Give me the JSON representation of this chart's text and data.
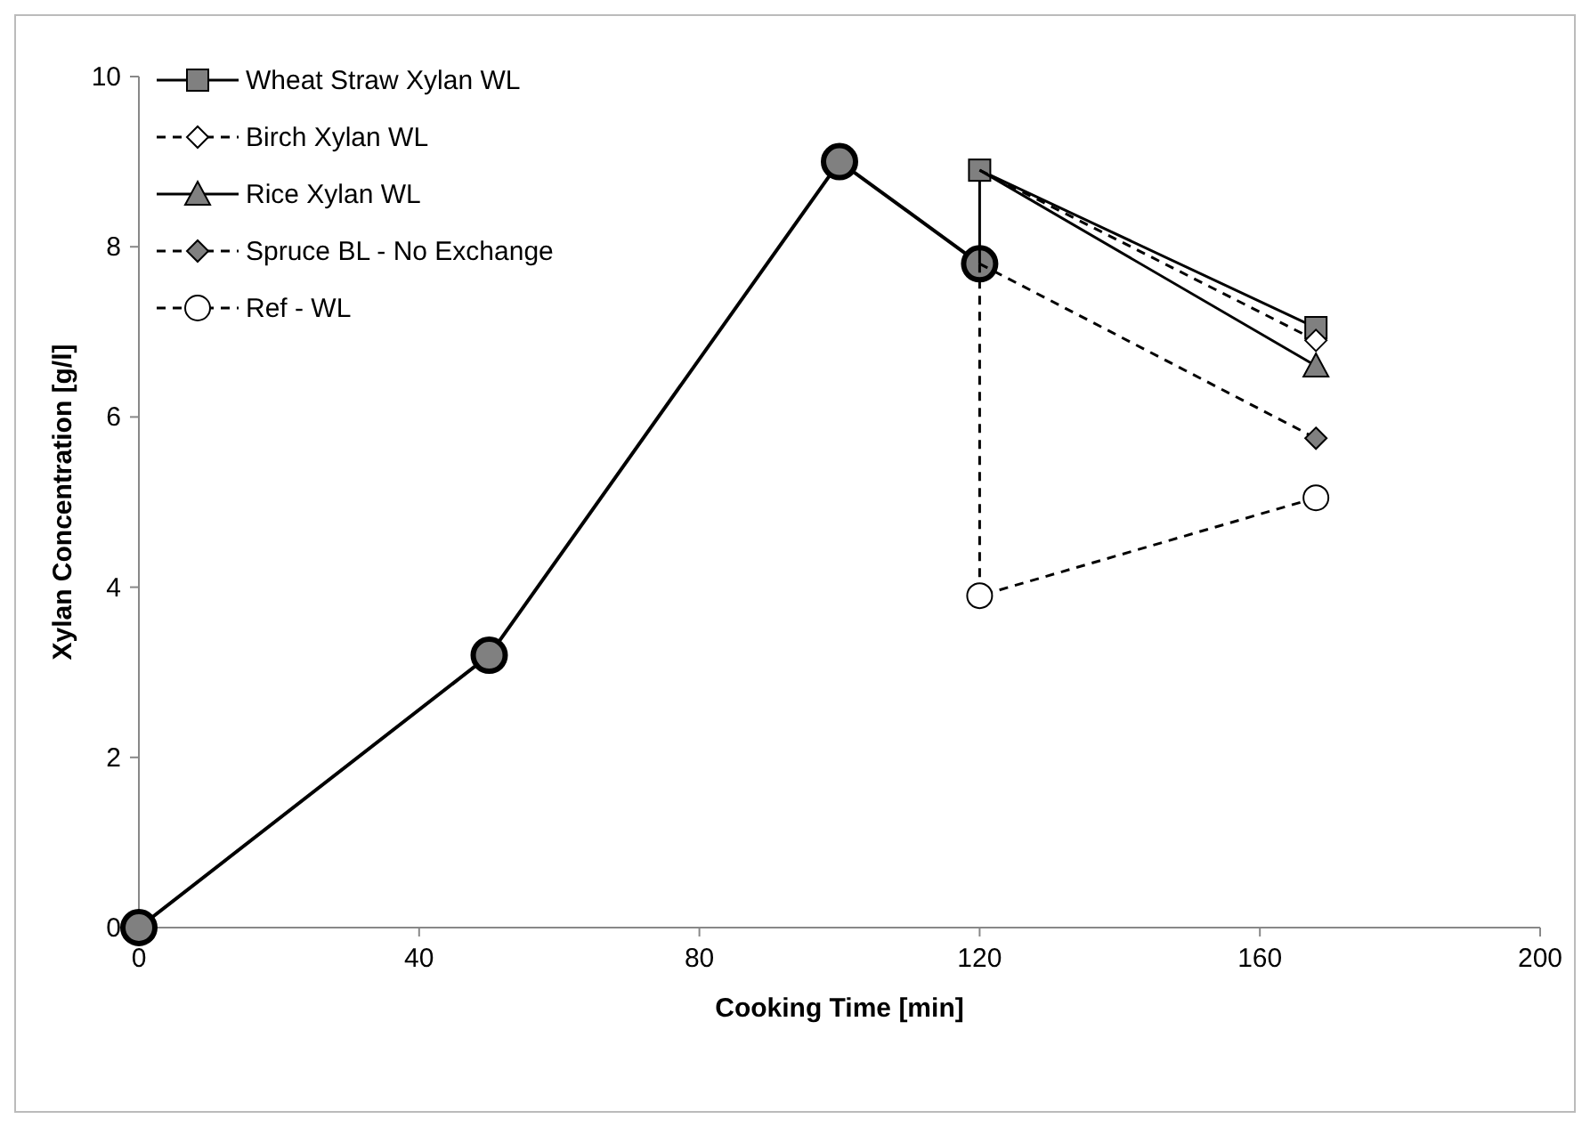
{
  "chart_data": {
    "type": "line",
    "xlabel": "Cooking Time [min]",
    "ylabel": "Xylan Concentration [g/l]",
    "xlim": [
      0,
      200
    ],
    "xticks": [
      0,
      40,
      80,
      120,
      160,
      200
    ],
    "ylim": [
      0,
      10
    ],
    "yticks": [
      0,
      2,
      4,
      6,
      8,
      10
    ],
    "grid": false,
    "legend": "top left",
    "series": [
      {
        "color": "#000000",
        "colors": [
          "#808080",
          "#808080",
          "#808080",
          "#808080"
        ],
        "marker": "circle",
        "line_style": "solid",
        "x": [
          0,
          50,
          100,
          120
        ],
        "values": [
          0,
          3.2,
          9,
          7.8
        ]
      },
      {
        "name": "Wheat Straw Xylan WL",
        "color": "#000000",
        "colors": [
          "#808080",
          "#808080",
          "#808080"
        ],
        "marker": "square",
        "line_style": "solid",
        "x": [
          120,
          120,
          168
        ],
        "values": [
          7.8,
          8.9,
          7.05
        ]
      },
      {
        "name": "Birch Xylan WL",
        "color": "#000000",
        "colors": [
          "#ffffff",
          "#ffffff"
        ],
        "marker": "diamond",
        "line_style": "dashed",
        "x": [
          120,
          168
        ],
        "values": [
          8.9,
          6.9
        ]
      },
      {
        "name": "Rice Xylan WL",
        "color": "#000000",
        "colors": [
          "#808080",
          "#808080"
        ],
        "marker": "triangle",
        "line_style": "solid",
        "x": [
          120,
          168
        ],
        "values": [
          8.9,
          6.6
        ]
      },
      {
        "name": "Spruce BL - No Exchange",
        "color": "#000000",
        "colors": [
          "#808080",
          "#808080"
        ],
        "marker": "diamond",
        "line_style": "dashed",
        "x": [
          120,
          168
        ],
        "values": [
          7.8,
          5.75
        ]
      },
      {
        "name": "Ref - WL",
        "color": "#000000",
        "colors": [
          "#ffffff",
          "#ffffff",
          "#ffffff"
        ],
        "marker": "circle",
        "line_style": "dashed",
        "x": [
          120,
          120,
          168
        ],
        "values": [
          7.8,
          3.9,
          5.05
        ]
      }
    ]
  }
}
